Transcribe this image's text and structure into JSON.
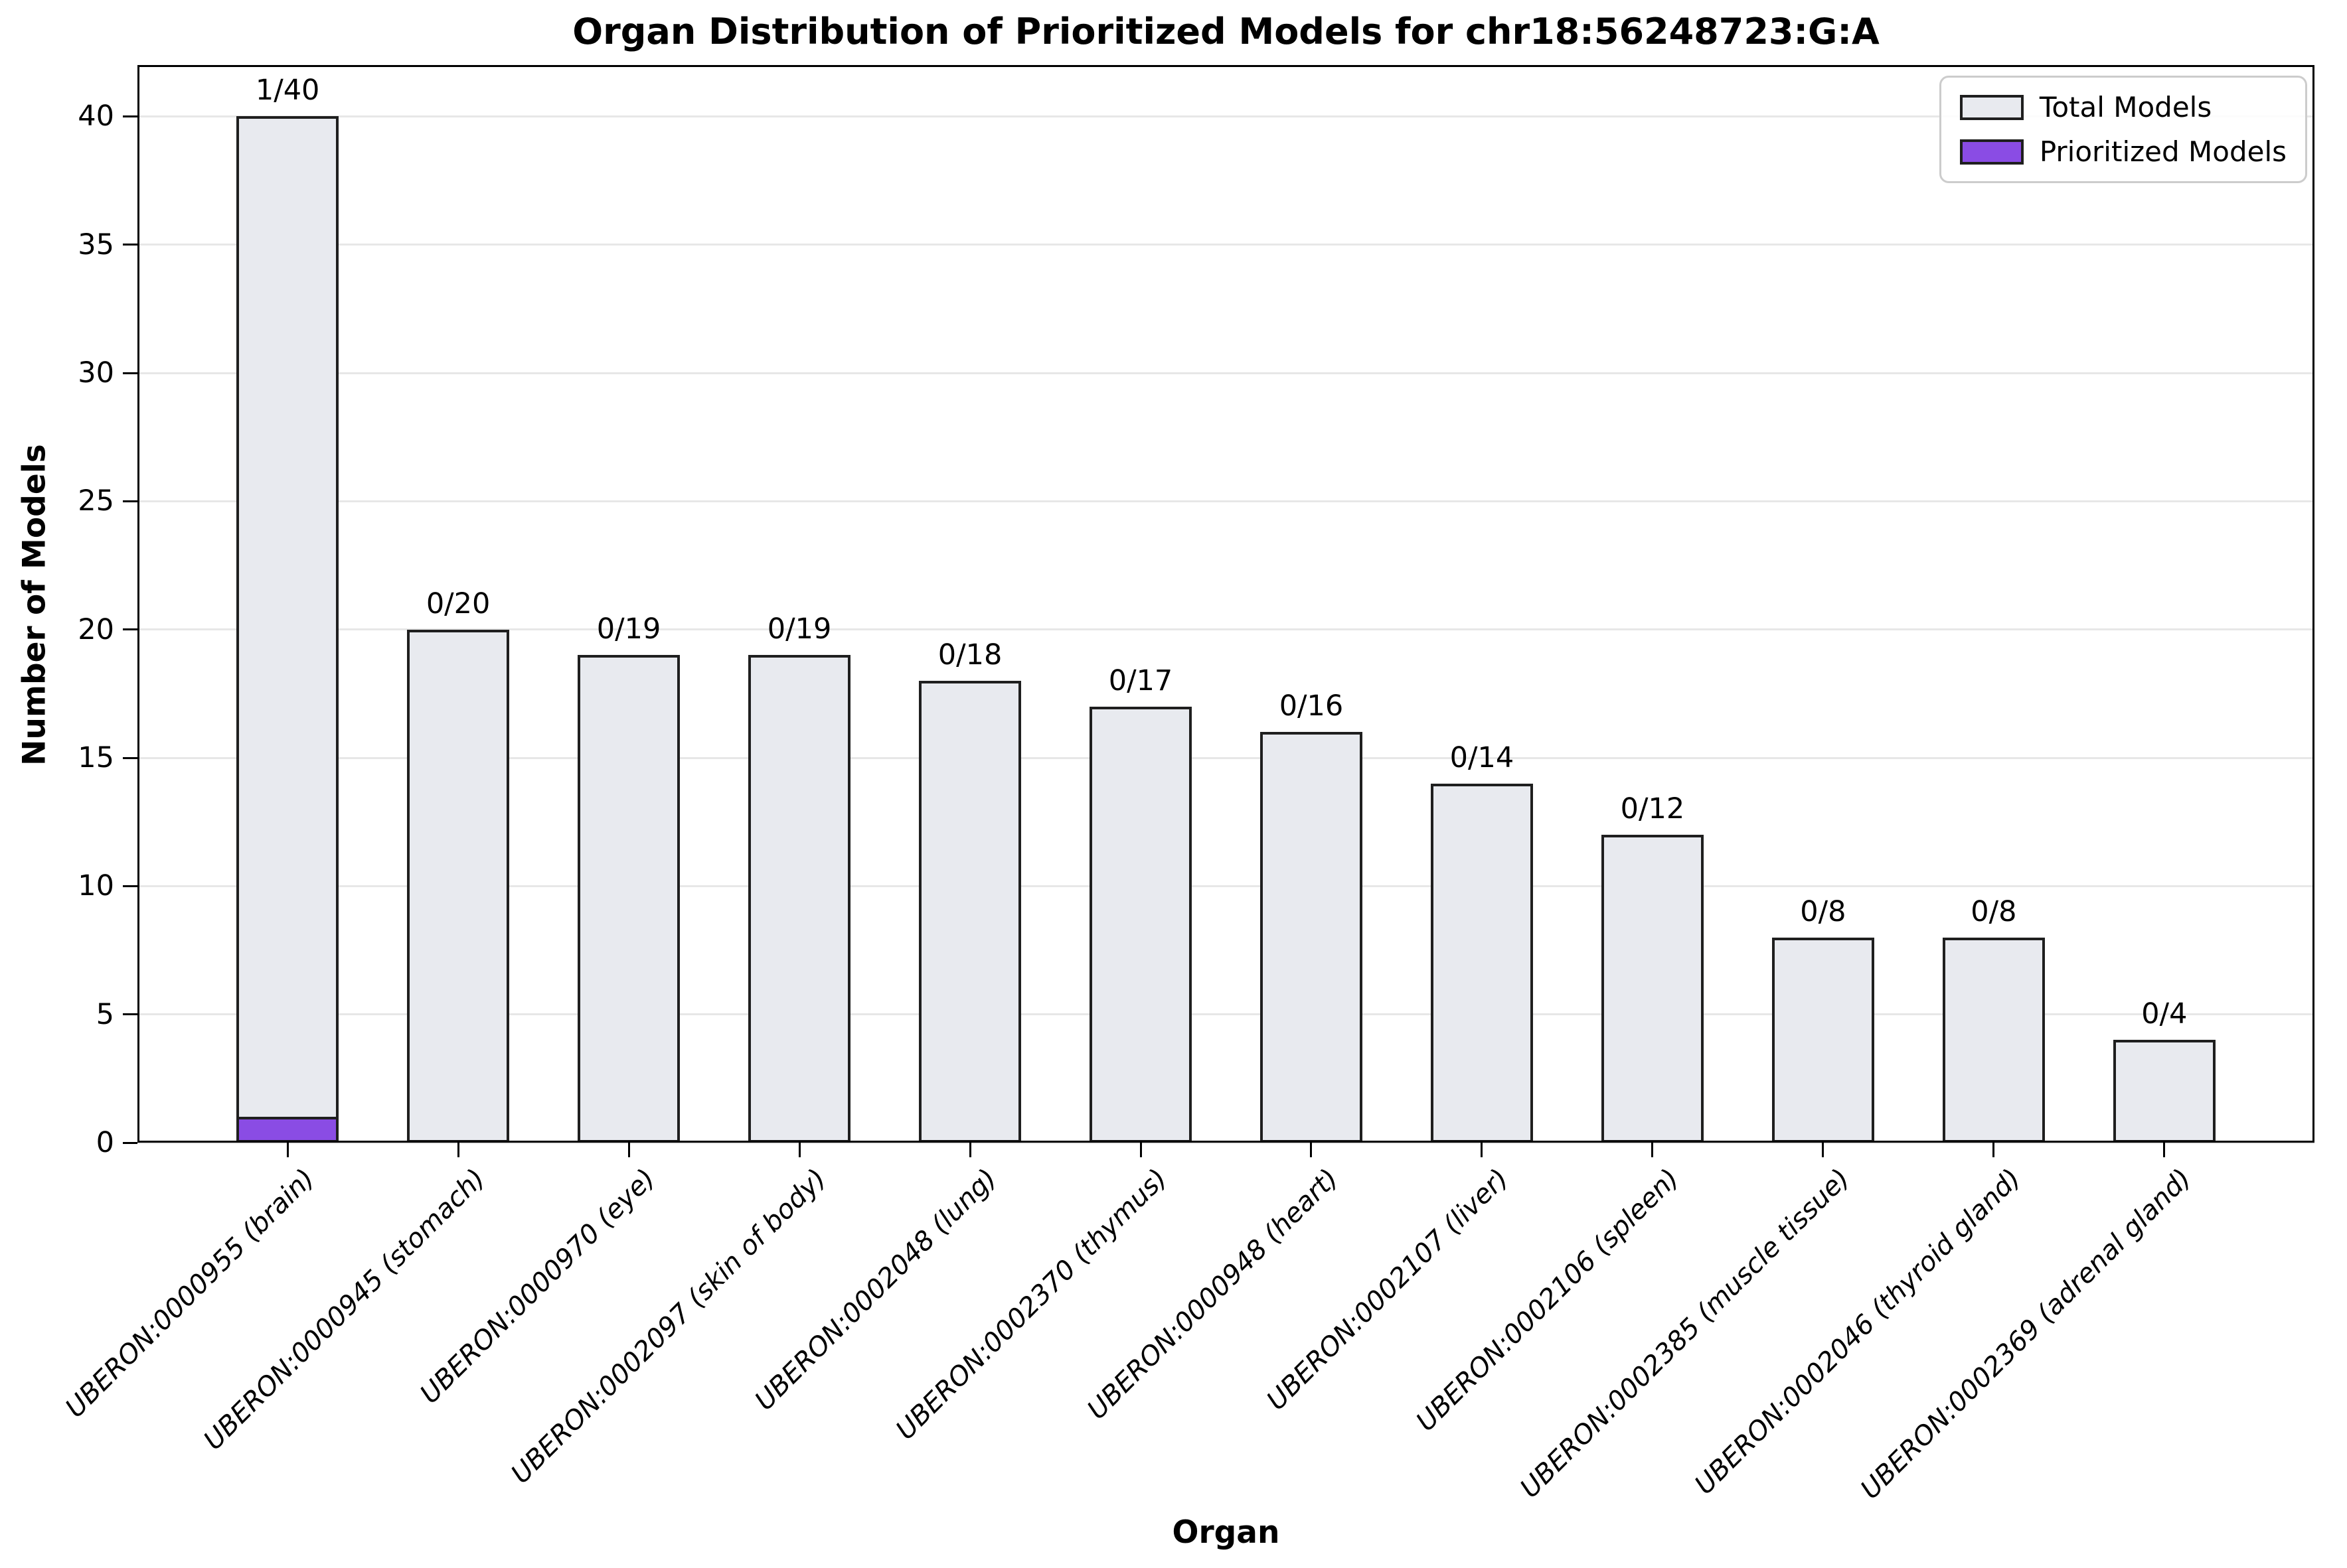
{
  "chart_data": {
    "type": "bar",
    "title": "Organ Distribution of Prioritized Models for chr18:56248723:G:A",
    "xlabel": "Organ",
    "ylabel": "Number of Models",
    "ylim": [
      0,
      42
    ],
    "yticks": [
      0,
      5,
      10,
      15,
      20,
      25,
      30,
      35,
      40
    ],
    "grid": "horizontal",
    "legend_position": "upper-right-inside",
    "categories": [
      "UBERON:0000955 (brain)",
      "UBERON:0000945 (stomach)",
      "UBERON:0000970 (eye)",
      "UBERON:0002097 (skin of body)",
      "UBERON:0002048 (lung)",
      "UBERON:0002370 (thymus)",
      "UBERON:0000948 (heart)",
      "UBERON:0002107 (liver)",
      "UBERON:0002106 (spleen)",
      "UBERON:0002385 (muscle tissue)",
      "UBERON:0002046 (thyroid gland)",
      "UBERON:0002369 (adrenal gland)"
    ],
    "series": [
      {
        "name": "Total Models",
        "fill": "#e8eaef",
        "edge": "#1f1f1f",
        "values": [
          40,
          20,
          19,
          19,
          18,
          17,
          16,
          14,
          12,
          8,
          8,
          4
        ]
      },
      {
        "name": "Prioritized Models",
        "fill": "#8a4ce4",
        "edge": "#1f1f1f",
        "values": [
          1,
          0,
          0,
          0,
          0,
          0,
          0,
          0,
          0,
          0,
          0,
          0
        ]
      }
    ],
    "bar_labels": [
      "1/40",
      "0/20",
      "0/19",
      "0/19",
      "0/18",
      "0/17",
      "0/16",
      "0/14",
      "0/12",
      "0/8",
      "0/8",
      "0/4"
    ],
    "colors": {
      "background": "#ffffff",
      "grid": "#e7e7e7",
      "axis": "#000000",
      "total_fill": "#e8eaef",
      "prioritized_fill": "#8a4ce4",
      "bar_edge": "#1f1f1f"
    }
  }
}
